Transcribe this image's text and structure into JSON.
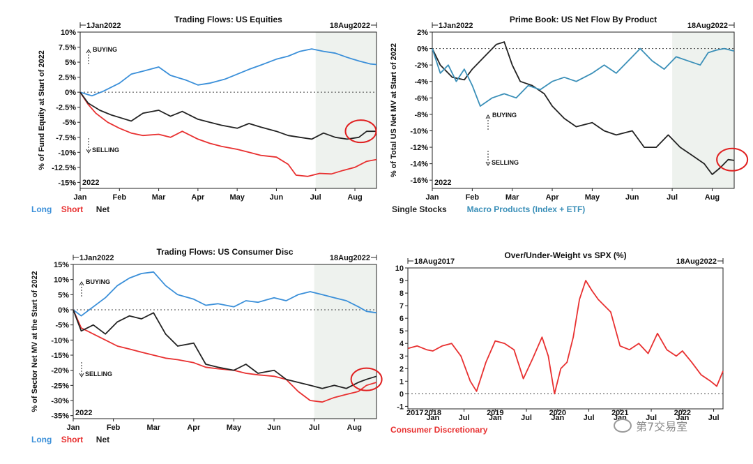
{
  "watermark": "第7交易室",
  "charts": [
    {
      "title": "Trading Flows: US Equities",
      "start_label": "1Jan2022",
      "end_label": "18Aug2022",
      "year_label": "2022",
      "ylabel": "% of Fund Equity at Start of 2022",
      "annot_buy": "BUYING",
      "annot_sell": "SELLING",
      "legend": [
        {
          "label": "Long",
          "color": "#3a8fd9"
        },
        {
          "label": "Short",
          "color": "#e83030"
        },
        {
          "label": "Net",
          "color": "#222222"
        }
      ]
    },
    {
      "title": "Prime Book: US Net Flow By Product",
      "start_label": "1Jan2022",
      "end_label": "18Aug2022",
      "year_label": "2022",
      "ylabel": "% of Total US Net MV at Start of 2022",
      "annot_buy": "BUYING",
      "annot_sell": "SELLING",
      "legend": [
        {
          "label": "Single Stocks",
          "color": "#222222"
        },
        {
          "label": "Macro Products (Index + ETF)",
          "color": "#3a8fb8"
        }
      ]
    },
    {
      "title": "Trading Flows: US Consumer Disc",
      "start_label": "1Jan2022",
      "end_label": "18Aug2022",
      "year_label": "2022",
      "ylabel": "% of Sector Net MV at the Start of 2022",
      "annot_buy": "BUYING",
      "annot_sell": "SELLING",
      "legend": [
        {
          "label": "Long",
          "color": "#3a8fd9"
        },
        {
          "label": "Short",
          "color": "#e83030"
        },
        {
          "label": "Net",
          "color": "#222222"
        }
      ]
    },
    {
      "title": "Over/Under-Weight vs SPX (%)",
      "start_label": "18Aug2017",
      "end_label": "18Aug2022",
      "year_label": "2017",
      "ylabel": "",
      "legend": [
        {
          "label": "Consumer Discretionary",
          "color": "#e83030"
        }
      ]
    }
  ],
  "chart_data": [
    {
      "type": "line",
      "title": "Trading Flows: US Equities",
      "x_unit": "month",
      "xlim": [
        0,
        7.55
      ],
      "ylim": [
        -16,
        10
      ],
      "yticks": [
        10,
        7.5,
        5,
        2.5,
        0,
        -2.5,
        -5,
        -7.5,
        -10,
        -12.5,
        -15
      ],
      "ytick_labels": [
        "10%",
        "7.5%",
        "5%",
        "2.5%",
        "0%",
        "-2.5%",
        "-5%",
        "-7.5%",
        "-10%",
        "-12.5%",
        "-15%"
      ],
      "xticks": [
        0,
        1,
        2,
        3,
        4,
        5,
        6,
        7
      ],
      "xtick_labels": [
        "Jan",
        "Feb",
        "Mar",
        "Apr",
        "May",
        "Jun",
        "Jul",
        "Aug"
      ],
      "shade_from": 6.0,
      "highlight": {
        "x": 7.15,
        "y": -6.5
      },
      "series": [
        {
          "name": "Long",
          "color": "#3a8fd9",
          "x": [
            0,
            0.3,
            0.6,
            1.0,
            1.3,
            1.6,
            2.0,
            2.3,
            2.7,
            3.0,
            3.3,
            3.7,
            4.0,
            4.3,
            4.6,
            5.0,
            5.3,
            5.6,
            5.9,
            6.2,
            6.5,
            6.8,
            7.1,
            7.4,
            7.55
          ],
          "y": [
            0,
            -0.6,
            0.2,
            1.5,
            3.0,
            3.5,
            4.2,
            2.8,
            2.0,
            1.2,
            1.5,
            2.2,
            3.0,
            3.8,
            4.5,
            5.5,
            6.0,
            6.8,
            7.2,
            6.8,
            6.5,
            5.8,
            5.2,
            4.7,
            4.6
          ]
        },
        {
          "name": "Short",
          "color": "#e83030",
          "x": [
            0,
            0.2,
            0.4,
            0.7,
            1.0,
            1.3,
            1.6,
            2.0,
            2.3,
            2.6,
            3.0,
            3.3,
            3.6,
            4.0,
            4.3,
            4.6,
            5.0,
            5.3,
            5.5,
            5.8,
            6.1,
            6.4,
            6.7,
            7.0,
            7.3,
            7.55
          ],
          "y": [
            0,
            -2.0,
            -3.5,
            -5.0,
            -6.0,
            -6.8,
            -7.2,
            -7.0,
            -7.5,
            -6.5,
            -7.8,
            -8.5,
            -9.0,
            -9.5,
            -10.0,
            -10.5,
            -10.8,
            -12.0,
            -13.8,
            -14.0,
            -13.5,
            -13.6,
            -13.0,
            -12.5,
            -11.5,
            -11.2
          ]
        },
        {
          "name": "Net",
          "color": "#222222",
          "x": [
            0,
            0.2,
            0.5,
            0.8,
            1.0,
            1.3,
            1.6,
            2.0,
            2.3,
            2.6,
            3.0,
            3.3,
            3.6,
            4.0,
            4.3,
            4.6,
            5.0,
            5.3,
            5.6,
            5.9,
            6.2,
            6.5,
            6.8,
            7.1,
            7.3,
            7.55
          ],
          "y": [
            0,
            -1.8,
            -3.0,
            -3.8,
            -4.2,
            -4.8,
            -3.5,
            -3.0,
            -4.0,
            -3.2,
            -4.5,
            -5.0,
            -5.5,
            -6.0,
            -5.2,
            -5.8,
            -6.5,
            -7.2,
            -7.5,
            -7.8,
            -6.8,
            -7.5,
            -7.8,
            -7.5,
            -6.5,
            -6.5
          ]
        }
      ]
    },
    {
      "type": "line",
      "title": "Prime Book: US Net Flow By Product",
      "x_unit": "month",
      "xlim": [
        0,
        7.55
      ],
      "ylim": [
        -17,
        2
      ],
      "yticks": [
        2,
        0,
        -2,
        -4,
        -6,
        -8,
        -10,
        -12,
        -14,
        -16
      ],
      "ytick_labels": [
        "2%",
        "0%",
        "-2%",
        "-4%",
        "-6%",
        "-8%",
        "-10%",
        "-12%",
        "-14%",
        "-16%"
      ],
      "xticks": [
        0,
        1,
        2,
        3,
        4,
        5,
        6,
        7
      ],
      "xtick_labels": [
        "Jan",
        "Feb",
        "Mar",
        "Apr",
        "May",
        "Jun",
        "Jul",
        "Aug"
      ],
      "shade_from": 6.0,
      "highlight": {
        "x": 7.5,
        "y": -13.5
      },
      "series": [
        {
          "name": "Single Stocks",
          "color": "#222222",
          "x": [
            0,
            0.2,
            0.5,
            0.8,
            1.0,
            1.3,
            1.6,
            1.8,
            2.0,
            2.2,
            2.5,
            2.8,
            3.0,
            3.3,
            3.6,
            4.0,
            4.3,
            4.6,
            5.0,
            5.3,
            5.6,
            5.9,
            6.2,
            6.5,
            6.8,
            7.0,
            7.2,
            7.4,
            7.55
          ],
          "y": [
            0,
            -2.0,
            -3.5,
            -3.8,
            -2.5,
            -1.0,
            0.5,
            0.8,
            -2.0,
            -4.0,
            -4.5,
            -5.5,
            -7.0,
            -8.5,
            -9.5,
            -9.0,
            -10.0,
            -10.5,
            -10.0,
            -12.0,
            -12.0,
            -10.5,
            -12.0,
            -13.0,
            -14.0,
            -15.3,
            -14.5,
            -13.5,
            -13.6
          ]
        },
        {
          "name": "Macro Products (Index + ETF)",
          "color": "#3a8fb8",
          "x": [
            0,
            0.2,
            0.4,
            0.6,
            0.8,
            1.0,
            1.2,
            1.5,
            1.8,
            2.1,
            2.4,
            2.7,
            3.0,
            3.3,
            3.6,
            4.0,
            4.3,
            4.6,
            5.0,
            5.2,
            5.5,
            5.8,
            6.1,
            6.4,
            6.7,
            6.9,
            7.1,
            7.3,
            7.55
          ],
          "y": [
            0,
            -3.0,
            -2.0,
            -4.0,
            -2.5,
            -4.5,
            -7.0,
            -6.0,
            -5.5,
            -6.0,
            -4.5,
            -5.0,
            -4.0,
            -3.5,
            -4.0,
            -3.0,
            -2.0,
            -3.0,
            -1.0,
            0,
            -1.5,
            -2.5,
            -1.0,
            -1.5,
            -2.0,
            -0.5,
            -0.2,
            0,
            -0.3
          ]
        }
      ]
    },
    {
      "type": "line",
      "title": "Trading Flows: US Consumer Disc",
      "x_unit": "month",
      "xlim": [
        0,
        7.55
      ],
      "ylim": [
        -36,
        15
      ],
      "yticks": [
        15,
        10,
        5,
        0,
        -5,
        -10,
        -15,
        -20,
        -25,
        -30,
        -35
      ],
      "ytick_labels": [
        "15%",
        "10%",
        "5%",
        "0%",
        "-5%",
        "-10%",
        "-15%",
        "-20%",
        "-25%",
        "-30%",
        "-35%"
      ],
      "xticks": [
        0,
        1,
        2,
        3,
        4,
        5,
        6,
        7
      ],
      "xtick_labels": [
        "Jan",
        "Feb",
        "Mar",
        "Apr",
        "May",
        "Jun",
        "Jul",
        "Aug"
      ],
      "shade_from": 6.0,
      "highlight": {
        "x": 7.3,
        "y": -23
      },
      "series": [
        {
          "name": "Long",
          "color": "#3a8fd9",
          "x": [
            0,
            0.2,
            0.5,
            0.8,
            1.1,
            1.4,
            1.7,
            2.0,
            2.3,
            2.6,
            3.0,
            3.3,
            3.6,
            4.0,
            4.3,
            4.6,
            5.0,
            5.3,
            5.6,
            5.9,
            6.2,
            6.5,
            6.8,
            7.1,
            7.3,
            7.55
          ],
          "y": [
            0,
            -2.0,
            1.0,
            4.0,
            8.0,
            10.5,
            12.0,
            12.5,
            8.0,
            5.0,
            3.5,
            1.5,
            2.0,
            1.0,
            3.0,
            2.5,
            4.0,
            3.0,
            5.0,
            6.0,
            5.0,
            4.0,
            3.0,
            1.0,
            -0.5,
            -1.0
          ]
        },
        {
          "name": "Short",
          "color": "#e83030",
          "x": [
            0,
            0.2,
            0.5,
            0.8,
            1.1,
            1.4,
            1.7,
            2.0,
            2.3,
            2.6,
            3.0,
            3.3,
            3.6,
            4.0,
            4.3,
            4.6,
            5.0,
            5.3,
            5.6,
            5.9,
            6.2,
            6.5,
            6.8,
            7.1,
            7.3,
            7.55
          ],
          "y": [
            0,
            -6.0,
            -8.0,
            -10.0,
            -12.0,
            -13.0,
            -14.0,
            -15.0,
            -16.0,
            -16.5,
            -17.5,
            -19.0,
            -19.5,
            -20.0,
            -21.0,
            -21.5,
            -22.0,
            -23.0,
            -27.0,
            -30.0,
            -30.5,
            -29.0,
            -28.0,
            -27.0,
            -25.0,
            -24.0
          ]
        },
        {
          "name": "Net",
          "color": "#222222",
          "x": [
            0,
            0.2,
            0.5,
            0.8,
            1.1,
            1.4,
            1.7,
            2.0,
            2.3,
            2.6,
            3.0,
            3.3,
            3.6,
            4.0,
            4.3,
            4.6,
            5.0,
            5.3,
            5.6,
            5.9,
            6.2,
            6.5,
            6.8,
            7.1,
            7.3,
            7.55
          ],
          "y": [
            0,
            -7.0,
            -5.0,
            -8.0,
            -4.0,
            -2.0,
            -3.0,
            -1.0,
            -8.0,
            -12.0,
            -11.0,
            -18.0,
            -19.0,
            -20.0,
            -18.0,
            -21.0,
            -20.0,
            -23.0,
            -24.0,
            -25.0,
            -26.0,
            -25.0,
            -26.0,
            -24.0,
            -23.0,
            -22.0
          ]
        }
      ]
    },
    {
      "type": "line",
      "title": "Over/Under-Weight vs SPX (%)",
      "x_unit": "year",
      "xlim": [
        2017.6,
        2022.65
      ],
      "ylim": [
        -1.2,
        10
      ],
      "yticks": [
        10,
        9,
        8,
        7,
        6,
        5,
        4,
        3,
        2,
        1,
        0,
        -1
      ],
      "ytick_labels": [
        "10",
        "9",
        "8",
        "7",
        "6",
        "5",
        "4",
        "3",
        "2",
        "1",
        "0",
        "-1"
      ],
      "xticks": [
        2018.0,
        2018.5,
        2019.0,
        2019.5,
        2020.0,
        2020.5,
        2021.0,
        2021.5,
        2022.0,
        2022.5
      ],
      "xtick_labels": [
        "Jan",
        "Jul",
        "Jan",
        "Jul",
        "Jan",
        "Jul",
        "Jan",
        "Jul",
        "Jan",
        "Jul"
      ],
      "year_ticks": [
        2018,
        2019,
        2020,
        2021,
        2022
      ],
      "series": [
        {
          "name": "Consumer Discretionary",
          "color": "#e83030",
          "x": [
            2017.6,
            2017.75,
            2017.9,
            2018.0,
            2018.15,
            2018.3,
            2018.45,
            2018.6,
            2018.7,
            2018.85,
            2019.0,
            2019.15,
            2019.3,
            2019.45,
            2019.6,
            2019.75,
            2019.85,
            2019.95,
            2020.05,
            2020.15,
            2020.25,
            2020.35,
            2020.45,
            2020.55,
            2020.65,
            2020.75,
            2020.85,
            2021.0,
            2021.15,
            2021.3,
            2021.45,
            2021.6,
            2021.75,
            2021.9,
            2022.0,
            2022.15,
            2022.3,
            2022.45,
            2022.55,
            2022.65
          ],
          "y": [
            3.6,
            3.8,
            3.5,
            3.4,
            3.8,
            4.0,
            3.0,
            1.0,
            0.2,
            2.5,
            4.2,
            4.0,
            3.5,
            1.2,
            2.8,
            4.5,
            3.0,
            0.0,
            2.0,
            2.5,
            4.5,
            7.5,
            9.0,
            8.2,
            7.5,
            7.0,
            6.5,
            3.8,
            3.5,
            4.0,
            3.2,
            4.8,
            3.5,
            3.0,
            3.4,
            2.5,
            1.5,
            1.0,
            0.6,
            1.8
          ]
        }
      ]
    }
  ]
}
